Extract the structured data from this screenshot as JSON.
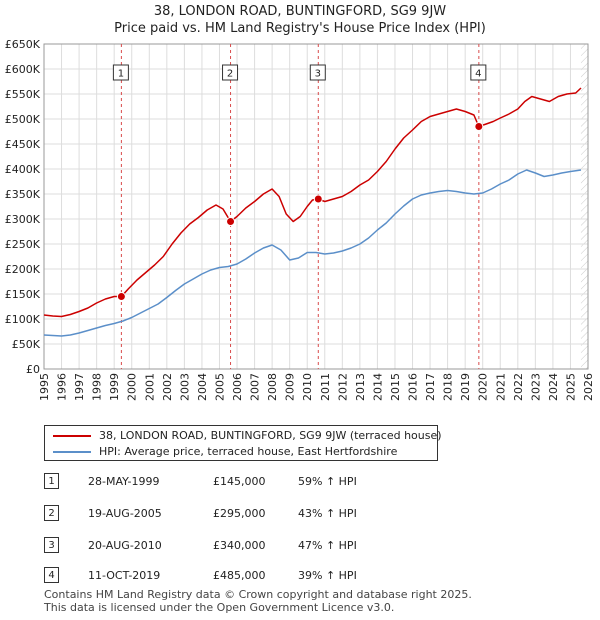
{
  "title_line1": "38, LONDON ROAD, BUNTINGFORD, SG9 9JW",
  "title_line2": "Price paid vs. HM Land Registry's House Price Index (HPI)",
  "colors": {
    "property": "#cc0000",
    "hpi": "#5b8fc9",
    "grid": "#dddddd",
    "marker_line": "#d94b4b"
  },
  "chart_data": {
    "type": "line",
    "title": "Price paid vs. HM Land Registry's House Price Index (HPI)",
    "xlabel": "",
    "ylabel": "",
    "xlim": [
      1995,
      2026
    ],
    "ylim": [
      0,
      650000
    ],
    "y_ticks": [
      0,
      50000,
      100000,
      150000,
      200000,
      250000,
      300000,
      350000,
      400000,
      450000,
      500000,
      550000,
      600000,
      650000
    ],
    "y_tick_labels": [
      "£0",
      "£50K",
      "£100K",
      "£150K",
      "£200K",
      "£250K",
      "£300K",
      "£350K",
      "£400K",
      "£450K",
      "£500K",
      "£550K",
      "£600K",
      "£650K"
    ],
    "x_ticks": [
      1995,
      1996,
      1997,
      1998,
      1999,
      2000,
      2001,
      2002,
      2003,
      2004,
      2005,
      2006,
      2007,
      2008,
      2009,
      2010,
      2011,
      2012,
      2013,
      2014,
      2015,
      2016,
      2017,
      2018,
      2019,
      2020,
      2021,
      2022,
      2023,
      2024,
      2025,
      2026
    ],
    "x_tick_labels": [
      "1995",
      "1996",
      "1997",
      "1998",
      "1999",
      "2000",
      "2001",
      "2002",
      "2003",
      "2004",
      "2005",
      "2006",
      "2007",
      "2008",
      "2009",
      "2010",
      "2011",
      "2012",
      "2013",
      "2014",
      "2015",
      "2016",
      "2017",
      "2018",
      "2019",
      "2020",
      "2021",
      "2022",
      "2023",
      "2024",
      "2025",
      "2026"
    ],
    "grid": true,
    "series": [
      {
        "name": "38, LONDON ROAD, BUNTINGFORD, SG9 9JW (terraced house)",
        "x": [
          1995.0,
          1995.5,
          1996.0,
          1996.5,
          1997.0,
          1997.5,
          1998.0,
          1998.5,
          1999.0,
          1999.41,
          1999.8,
          2000.3,
          2000.8,
          2001.3,
          2001.8,
          2002.3,
          2002.8,
          2003.3,
          2003.8,
          2004.3,
          2004.8,
          2005.2,
          2005.63,
          2006.0,
          2006.5,
          2007.0,
          2007.5,
          2008.0,
          2008.4,
          2008.8,
          2009.2,
          2009.6,
          2010.0,
          2010.3,
          2010.63,
          2011.0,
          2011.5,
          2012.0,
          2012.5,
          2013.0,
          2013.5,
          2014.0,
          2014.5,
          2015.0,
          2015.5,
          2016.0,
          2016.5,
          2017.0,
          2017.5,
          2018.0,
          2018.5,
          2019.0,
          2019.5,
          2019.78,
          2020.2,
          2020.6,
          2021.0,
          2021.5,
          2022.0,
          2022.4,
          2022.8,
          2023.3,
          2023.8,
          2024.3,
          2024.8,
          2025.3,
          2025.6
        ],
        "values": [
          108000,
          106000,
          105000,
          109000,
          115000,
          122000,
          132000,
          140000,
          145000,
          145000,
          160000,
          178000,
          193000,
          208000,
          225000,
          250000,
          272000,
          290000,
          303000,
          318000,
          328000,
          320000,
          295000,
          305000,
          322000,
          335000,
          350000,
          360000,
          345000,
          310000,
          295000,
          305000,
          325000,
          338000,
          340000,
          335000,
          340000,
          345000,
          355000,
          368000,
          378000,
          395000,
          415000,
          440000,
          462000,
          478000,
          495000,
          505000,
          510000,
          515000,
          520000,
          515000,
          508000,
          485000,
          490000,
          495000,
          502000,
          510000,
          520000,
          535000,
          545000,
          540000,
          535000,
          545000,
          550000,
          552000,
          562000
        ]
      },
      {
        "name": "HPI: Average price, terraced house, East Hertfordshire",
        "x": [
          1995.0,
          1995.5,
          1996.0,
          1996.5,
          1997.0,
          1997.5,
          1998.0,
          1998.5,
          1999.0,
          1999.5,
          2000.0,
          2000.5,
          2001.0,
          2001.5,
          2002.0,
          2002.5,
          2003.0,
          2003.5,
          2004.0,
          2004.5,
          2005.0,
          2005.5,
          2006.0,
          2006.5,
          2007.0,
          2007.5,
          2008.0,
          2008.5,
          2009.0,
          2009.5,
          2010.0,
          2010.5,
          2011.0,
          2011.5,
          2012.0,
          2012.5,
          2013.0,
          2013.5,
          2014.0,
          2014.5,
          2015.0,
          2015.5,
          2016.0,
          2016.5,
          2017.0,
          2017.5,
          2018.0,
          2018.5,
          2019.0,
          2019.5,
          2020.0,
          2020.5,
          2021.0,
          2021.5,
          2022.0,
          2022.5,
          2023.0,
          2023.5,
          2024.0,
          2024.5,
          2025.0,
          2025.6
        ],
        "values": [
          68000,
          67000,
          66000,
          68000,
          72000,
          77000,
          82000,
          87000,
          91000,
          96000,
          103000,
          112000,
          121000,
          130000,
          143000,
          157000,
          170000,
          180000,
          190000,
          198000,
          203000,
          205000,
          210000,
          220000,
          232000,
          242000,
          248000,
          238000,
          218000,
          222000,
          233000,
          233000,
          230000,
          232000,
          236000,
          242000,
          250000,
          262000,
          278000,
          292000,
          310000,
          326000,
          340000,
          348000,
          352000,
          355000,
          357000,
          355000,
          352000,
          350000,
          352000,
          360000,
          370000,
          378000,
          390000,
          398000,
          392000,
          385000,
          388000,
          392000,
          395000,
          398000
        ]
      }
    ],
    "markers": [
      {
        "label": "1",
        "x": 1999.41,
        "y": 145000
      },
      {
        "label": "2",
        "x": 2005.63,
        "y": 295000
      },
      {
        "label": "3",
        "x": 2010.63,
        "y": 340000
      },
      {
        "label": "4",
        "x": 2019.78,
        "y": 485000
      }
    ]
  },
  "legend": {
    "property_label": "38, LONDON ROAD, BUNTINGFORD, SG9 9JW (terraced house)",
    "hpi_label": "HPI: Average price, terraced house, East Hertfordshire"
  },
  "transactions": [
    {
      "num": "1",
      "date": "28-MAY-1999",
      "price": "£145,000",
      "hpi": "59% ↑ HPI"
    },
    {
      "num": "2",
      "date": "19-AUG-2005",
      "price": "£295,000",
      "hpi": "43% ↑ HPI"
    },
    {
      "num": "3",
      "date": "20-AUG-2010",
      "price": "£340,000",
      "hpi": "47% ↑ HPI"
    },
    {
      "num": "4",
      "date": "11-OCT-2019",
      "price": "£485,000",
      "hpi": "39% ↑ HPI"
    }
  ],
  "footer": {
    "line1": "Contains HM Land Registry data © Crown copyright and database right 2025.",
    "line2": "This data is licensed under the Open Government Licence v3.0."
  }
}
